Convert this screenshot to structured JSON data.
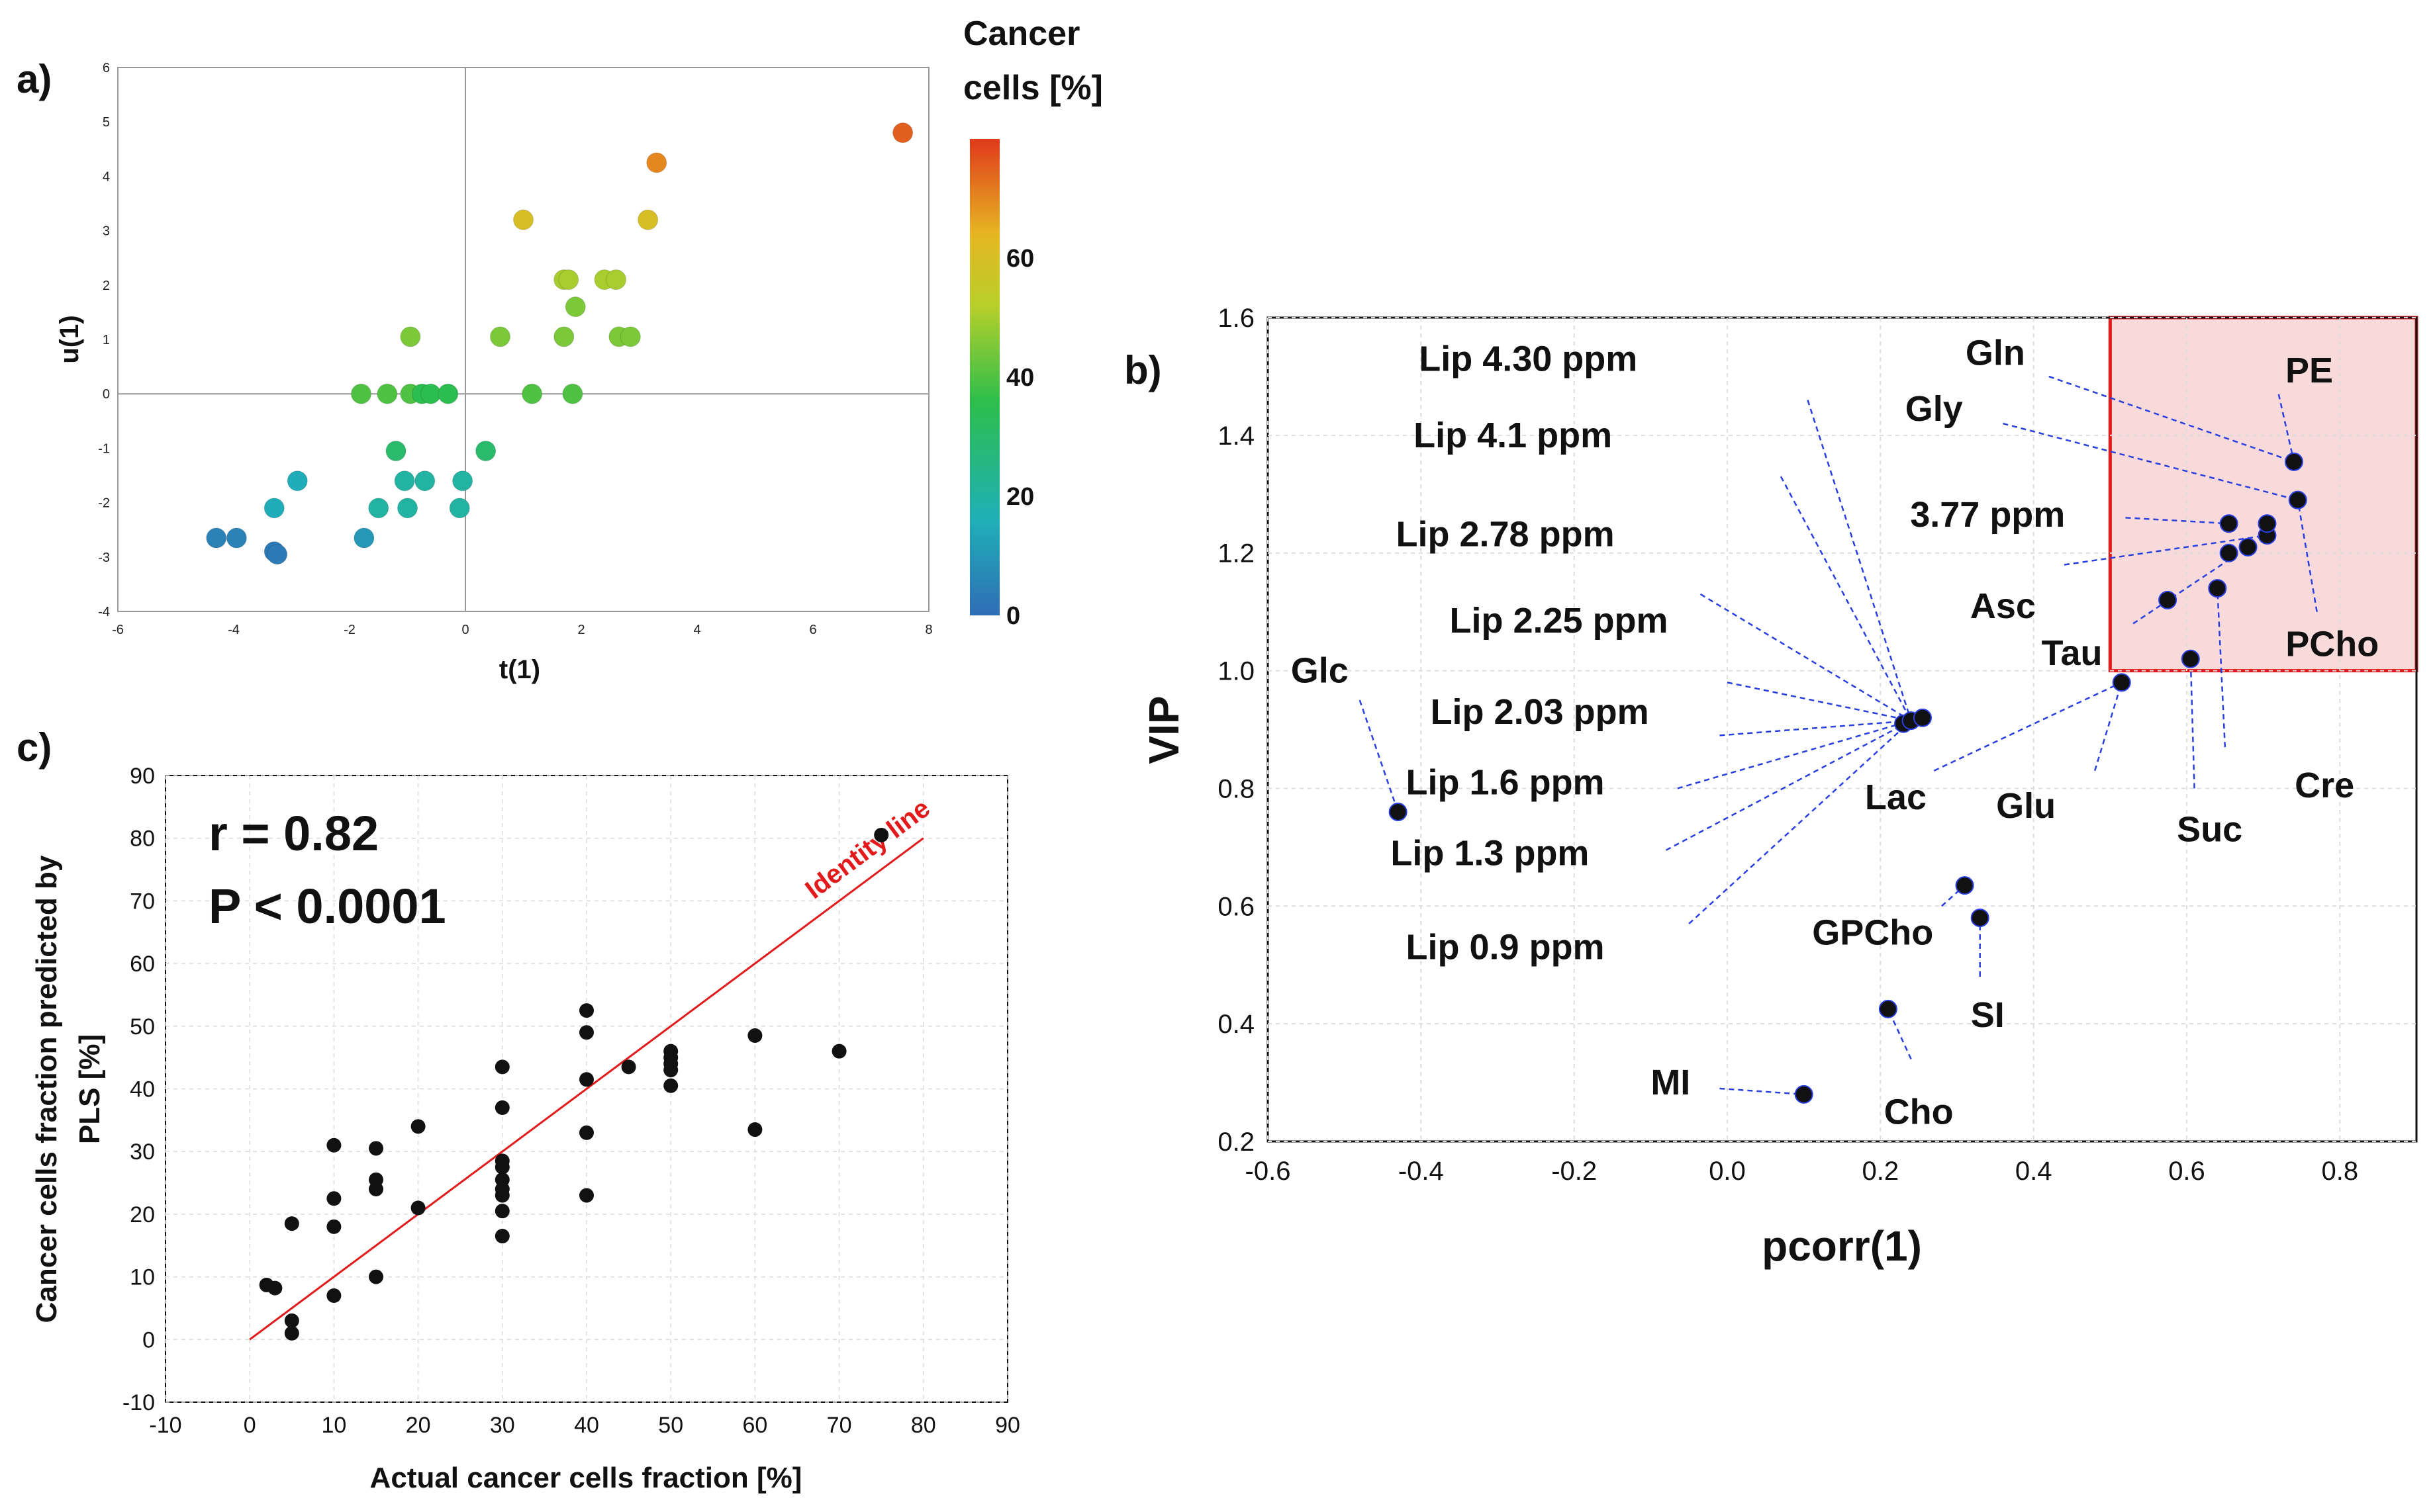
{
  "colors": {
    "scale": [
      "#2f6db5",
      "#1fb0b8",
      "#2dbe4b",
      "#b8cf2a",
      "#e6b622",
      "#e0391b"
    ],
    "leader": "#2a3fe0",
    "highlight_fill": "#f9dada",
    "highlight_stroke": "#e31a1c",
    "identity": "#e31a1c"
  },
  "chart_data": [
    {
      "id": "a",
      "panel_label": "a)",
      "type": "scatter",
      "xlabel": "t(1)",
      "ylabel": "u(1)",
      "xlim": [
        -6,
        8
      ],
      "ylim": [
        -4,
        6
      ],
      "xticks": [
        "-6",
        "-4",
        "-2",
        "0",
        "2",
        "4",
        "6",
        "8"
      ],
      "yticks": [
        "-4",
        "-3",
        "-2",
        "-1",
        "0",
        "1",
        "2",
        "3",
        "4",
        "5",
        "6"
      ],
      "colorbar": {
        "title_line1": "Cancer",
        "title_line2": "cells [%]",
        "range": [
          0,
          80
        ],
        "ticks": [
          "0",
          "20",
          "40",
          "60"
        ]
      },
      "points": [
        {
          "t": -4.3,
          "u": -2.65,
          "c": 5
        },
        {
          "t": -3.95,
          "u": -2.65,
          "c": 5
        },
        {
          "t": -3.3,
          "u": -2.9,
          "c": 3
        },
        {
          "t": -3.25,
          "u": -2.95,
          "c": 3
        },
        {
          "t": -3.3,
          "u": -2.1,
          "c": 15
        },
        {
          "t": -2.9,
          "u": -1.6,
          "c": 15
        },
        {
          "t": -1.75,
          "u": -2.65,
          "c": 10
        },
        {
          "t": -1.5,
          "u": -2.1,
          "c": 20
        },
        {
          "t": -1.2,
          "u": -1.05,
          "c": 30
        },
        {
          "t": -1.05,
          "u": -1.6,
          "c": 20
        },
        {
          "t": -1.0,
          "u": -2.1,
          "c": 20
        },
        {
          "t": -0.7,
          "u": -1.6,
          "c": 20
        },
        {
          "t": -0.05,
          "u": -1.6,
          "c": 20
        },
        {
          "t": -0.1,
          "u": -2.1,
          "c": 20
        },
        {
          "t": 0.35,
          "u": -1.05,
          "c": 30
        },
        {
          "t": -1.8,
          "u": 0.0,
          "c": 40
        },
        {
          "t": -1.35,
          "u": 0.0,
          "c": 40
        },
        {
          "t": -0.95,
          "u": 0.0,
          "c": 40
        },
        {
          "t": -0.75,
          "u": 0.0,
          "c": 35
        },
        {
          "t": -0.6,
          "u": 0.0,
          "c": 35
        },
        {
          "t": -0.3,
          "u": 0.0,
          "c": 35
        },
        {
          "t": -0.95,
          "u": 1.05,
          "c": 45
        },
        {
          "t": 1.15,
          "u": 0.0,
          "c": 40
        },
        {
          "t": 1.85,
          "u": 0.0,
          "c": 40
        },
        {
          "t": 0.6,
          "u": 1.05,
          "c": 45
        },
        {
          "t": 1.7,
          "u": 1.05,
          "c": 45
        },
        {
          "t": 1.9,
          "u": 1.6,
          "c": 45
        },
        {
          "t": 1.7,
          "u": 2.1,
          "c": 50
        },
        {
          "t": 1.78,
          "u": 2.1,
          "c": 50
        },
        {
          "t": 2.4,
          "u": 2.1,
          "c": 50
        },
        {
          "t": 2.6,
          "u": 2.1,
          "c": 50
        },
        {
          "t": 2.65,
          "u": 1.05,
          "c": 45
        },
        {
          "t": 2.85,
          "u": 1.05,
          "c": 45
        },
        {
          "t": 1.0,
          "u": 3.2,
          "c": 60
        },
        {
          "t": 3.15,
          "u": 3.2,
          "c": 60
        },
        {
          "t": 3.3,
          "u": 4.25,
          "c": 70
        },
        {
          "t": 7.55,
          "u": 4.8,
          "c": 75
        }
      ]
    },
    {
      "id": "b",
      "panel_label": "b)",
      "type": "scatter",
      "xlabel": "pcorr(1)",
      "ylabel": "VIP",
      "xlim": [
        -0.6,
        0.9
      ],
      "ylim": [
        0.2,
        1.6
      ],
      "xticks": [
        "-0.6",
        "-0.4",
        "-0.2",
        "0.0",
        "0.2",
        "0.4",
        "0.6",
        "0.8"
      ],
      "yticks": [
        "0.2",
        "0.4",
        "0.6",
        "0.8",
        "1.0",
        "1.2",
        "1.4",
        "1.6"
      ],
      "highlight_region": {
        "x0": 0.5,
        "x1": 0.9,
        "y0": 1.0,
        "y1": 1.6
      },
      "points": [
        {
          "x": -0.43,
          "y": 0.76
        },
        {
          "x": 0.23,
          "y": 0.91
        },
        {
          "x": 0.24,
          "y": 0.915
        },
        {
          "x": 0.255,
          "y": 0.92
        },
        {
          "x": 0.515,
          "y": 0.98
        },
        {
          "x": 0.31,
          "y": 0.635
        },
        {
          "x": 0.33,
          "y": 0.58
        },
        {
          "x": 0.21,
          "y": 0.425
        },
        {
          "x": 0.1,
          "y": 0.28
        },
        {
          "x": 0.605,
          "y": 1.02
        },
        {
          "x": 0.575,
          "y": 1.12
        },
        {
          "x": 0.64,
          "y": 1.14
        },
        {
          "x": 0.655,
          "y": 1.2
        },
        {
          "x": 0.655,
          "y": 1.25
        },
        {
          "x": 0.68,
          "y": 1.21
        },
        {
          "x": 0.705,
          "y": 1.23
        },
        {
          "x": 0.705,
          "y": 1.25
        },
        {
          "x": 0.74,
          "y": 1.355
        },
        {
          "x": 0.745,
          "y": 1.29
        }
      ],
      "labels": [
        {
          "text": "Lip 4.30 ppm",
          "x": -0.26,
          "y": 1.53,
          "anchor": "middle",
          "tx": 0.24,
          "ty": 0.915,
          "lx": 0.105,
          "ly": 1.46
        },
        {
          "text": "Lip 4.1 ppm",
          "x": -0.28,
          "y": 1.4,
          "anchor": "middle",
          "tx": 0.24,
          "ty": 0.915,
          "lx": 0.07,
          "ly": 1.33
        },
        {
          "text": "Lip 2.78 ppm",
          "x": -0.29,
          "y": 1.232,
          "anchor": "middle",
          "tx": 0.24,
          "ty": 0.915,
          "lx": -0.035,
          "ly": 1.13
        },
        {
          "text": "Lip 2.25 ppm",
          "x": -0.22,
          "y": 1.085,
          "anchor": "middle",
          "tx": 0.24,
          "ty": 0.915,
          "lx": 0.0,
          "ly": 0.98
        },
        {
          "text": "Lip 2.03 ppm",
          "x": -0.245,
          "y": 0.93,
          "anchor": "middle",
          "tx": 0.24,
          "ty": 0.915,
          "lx": -0.01,
          "ly": 0.89
        },
        {
          "text": "Lip 1.6 ppm",
          "x": -0.29,
          "y": 0.81,
          "anchor": "middle",
          "tx": 0.24,
          "ty": 0.915,
          "lx": -0.065,
          "ly": 0.8
        },
        {
          "text": "Lip 1.3 ppm",
          "x": -0.31,
          "y": 0.69,
          "anchor": "middle",
          "tx": 0.24,
          "ty": 0.915,
          "lx": -0.08,
          "ly": 0.695
        },
        {
          "text": "Lip 0.9 ppm",
          "x": -0.29,
          "y": 0.53,
          "anchor": "middle",
          "tx": 0.24,
          "ty": 0.915,
          "lx": -0.05,
          "ly": 0.57
        },
        {
          "text": "Glc",
          "x": -0.57,
          "y": 1.0,
          "anchor": "start",
          "tx": -0.43,
          "ty": 0.76,
          "lx": -0.48,
          "ly": 0.95
        },
        {
          "text": "Lac",
          "x": 0.22,
          "y": 0.785,
          "anchor": "middle",
          "tx": 0.515,
          "ty": 0.98,
          "lx": 0.27,
          "ly": 0.83
        },
        {
          "text": "Glu",
          "x": 0.39,
          "y": 0.77,
          "anchor": "middle",
          "tx": 0.515,
          "ty": 0.98,
          "lx": 0.48,
          "ly": 0.83
        },
        {
          "text": "GPCho",
          "x": 0.19,
          "y": 0.555,
          "anchor": "middle",
          "tx": 0.31,
          "ty": 0.635,
          "lx": 0.28,
          "ly": 0.6
        },
        {
          "text": "SI",
          "x": 0.34,
          "y": 0.415,
          "anchor": "middle",
          "tx": 0.33,
          "ty": 0.58,
          "lx": 0.33,
          "ly": 0.48
        },
        {
          "text": "Cho",
          "x": 0.25,
          "y": 0.25,
          "anchor": "middle",
          "tx": 0.21,
          "ty": 0.425,
          "lx": 0.24,
          "ly": 0.34
        },
        {
          "text": "MI",
          "x": -0.1,
          "y": 0.3,
          "anchor": "start",
          "tx": 0.1,
          "ty": 0.28,
          "lx": -0.01,
          "ly": 0.29
        },
        {
          "text": "Gln",
          "x": 0.35,
          "y": 1.54,
          "anchor": "middle",
          "tx": 0.74,
          "ty": 1.355,
          "lx": 0.42,
          "ly": 1.5
        },
        {
          "text": "Gly",
          "x": 0.27,
          "y": 1.445,
          "anchor": "middle",
          "tx": 0.745,
          "ty": 1.29,
          "lx": 0.36,
          "ly": 1.42
        },
        {
          "text": "3.77 ppm",
          "x": 0.34,
          "y": 1.265,
          "anchor": "middle",
          "tx": 0.655,
          "ty": 1.25,
          "lx": 0.52,
          "ly": 1.26
        },
        {
          "text": "Asc",
          "x": 0.36,
          "y": 1.11,
          "anchor": "middle",
          "tx": 0.705,
          "ty": 1.23,
          "lx": 0.44,
          "ly": 1.18
        },
        {
          "text": "Tau",
          "x": 0.45,
          "y": 1.03,
          "anchor": "middle",
          "tx": 0.68,
          "ty": 1.21,
          "lx": 0.53,
          "ly": 1.08
        },
        {
          "text": "PE",
          "x": 0.76,
          "y": 1.51,
          "anchor": "middle",
          "tx": 0.74,
          "ty": 1.355,
          "lx": 0.72,
          "ly": 1.47
        },
        {
          "text": "PCho",
          "x": 0.79,
          "y": 1.045,
          "anchor": "middle",
          "tx": 0.745,
          "ty": 1.29,
          "lx": 0.77,
          "ly": 1.1
        },
        {
          "text": "Cre",
          "x": 0.78,
          "y": 0.805,
          "anchor": "middle",
          "tx": 0.64,
          "ty": 1.14,
          "lx": 0.65,
          "ly": 0.87
        },
        {
          "text": "Suc",
          "x": 0.63,
          "y": 0.73,
          "anchor": "middle",
          "tx": 0.605,
          "ty": 1.02,
          "lx": 0.61,
          "ly": 0.8
        }
      ]
    },
    {
      "id": "c",
      "panel_label": "c)",
      "type": "scatter",
      "xlabel": "Actual cancer cells fraction [%]",
      "ylabel_line1": "Cancer cells fraction predicted by",
      "ylabel_line2": "PLS [%]",
      "xlim": [
        -10,
        90
      ],
      "ylim": [
        -10,
        90
      ],
      "xticks": [
        "-10",
        "0",
        "10",
        "20",
        "30",
        "40",
        "50",
        "60",
        "70",
        "80",
        "90"
      ],
      "yticks": [
        "-10",
        "0",
        "10",
        "20",
        "30",
        "40",
        "50",
        "60",
        "70",
        "80",
        "90"
      ],
      "identity_line": {
        "label": "Identity line",
        "from": [
          0,
          0
        ],
        "to": [
          80,
          80
        ]
      },
      "annotation_r": "r = 0.82",
      "annotation_p": "P < 0.0001",
      "points": [
        {
          "x": 2,
          "y": 8.7
        },
        {
          "x": 3,
          "y": 8.2
        },
        {
          "x": 5,
          "y": 18.5
        },
        {
          "x": 5,
          "y": 3
        },
        {
          "x": 5,
          "y": 1
        },
        {
          "x": 10,
          "y": 31
        },
        {
          "x": 10,
          "y": 22.5
        },
        {
          "x": 10,
          "y": 18
        },
        {
          "x": 10,
          "y": 7
        },
        {
          "x": 15,
          "y": 30.5
        },
        {
          "x": 15,
          "y": 25.5
        },
        {
          "x": 15,
          "y": 24
        },
        {
          "x": 15,
          "y": 10
        },
        {
          "x": 20,
          "y": 34
        },
        {
          "x": 20,
          "y": 21
        },
        {
          "x": 30,
          "y": 43.5
        },
        {
          "x": 30,
          "y": 37
        },
        {
          "x": 30,
          "y": 28.5
        },
        {
          "x": 30,
          "y": 27.5
        },
        {
          "x": 30,
          "y": 25.5
        },
        {
          "x": 30,
          "y": 24
        },
        {
          "x": 30,
          "y": 23
        },
        {
          "x": 30,
          "y": 20.5
        },
        {
          "x": 30,
          "y": 16.5
        },
        {
          "x": 40,
          "y": 52.5
        },
        {
          "x": 40,
          "y": 49
        },
        {
          "x": 40,
          "y": 41.5
        },
        {
          "x": 40,
          "y": 33
        },
        {
          "x": 40,
          "y": 23
        },
        {
          "x": 45,
          "y": 43.5
        },
        {
          "x": 50,
          "y": 46
        },
        {
          "x": 50,
          "y": 45
        },
        {
          "x": 50,
          "y": 44
        },
        {
          "x": 50,
          "y": 43
        },
        {
          "x": 50,
          "y": 40.5
        },
        {
          "x": 60,
          "y": 48.5
        },
        {
          "x": 60,
          "y": 33.5
        },
        {
          "x": 70,
          "y": 46
        },
        {
          "x": 75,
          "y": 80.5
        }
      ]
    }
  ]
}
